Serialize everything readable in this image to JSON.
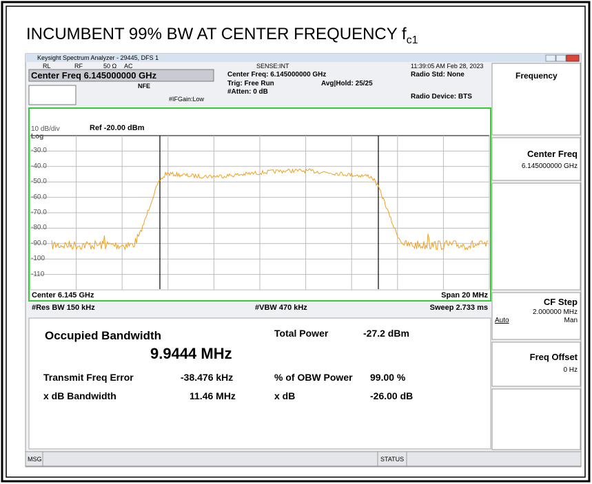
{
  "title": {
    "text": "INCUMBENT 99% BW AT CENTER FREQUENCY f",
    "subscript": "c1"
  },
  "window": {
    "title": "Keysight Spectrum Analyzer - 29445, DFS 1"
  },
  "status_row": {
    "rl": "RL",
    "rf": "RF",
    "impedance": "50 Ω",
    "coupling": "AC",
    "sense": "SENSE:INT",
    "datetime": "11:39:05 AM Feb 28, 2023"
  },
  "header": {
    "center_freq_box": "Center Freq 6.145000000 GHz",
    "nfe": "NFE",
    "ifgain": "#IFGain:Low",
    "center_freq": "Center Freq: 6.145000000 GHz",
    "trig": "Trig: Free Run",
    "avg_hold": "Avg|Hold: 25/25",
    "atten": "#Atten: 0 dB",
    "radio_std": "Radio Std: None",
    "radio_device": "Radio Device: BTS"
  },
  "graph": {
    "scale": "10 dB/div",
    "ref": "Ref -20.00 dBm",
    "log": "Log",
    "y_labels": [
      "-30.0",
      "-40.0",
      "-50.0",
      "-60.0",
      "-70.0",
      "-80.0",
      "-90.0",
      "-100",
      "-110"
    ],
    "center": "Center 6.145 GHz",
    "span": "Span 20 MHz",
    "res_bw": "#Res BW 150 kHz",
    "vbw": "#VBW 470 kHz",
    "sweep": "Sweep 2.733 ms"
  },
  "results": {
    "occupied_bw_label": "Occupied Bandwidth",
    "occupied_bw": "9.9444 MHz",
    "total_power_label": "Total Power",
    "total_power": "-27.2 dBm",
    "freq_error_label": "Transmit Freq Error",
    "freq_error": "-38.476 kHz",
    "obw_power_label": "% of OBW Power",
    "obw_power": "99.00 %",
    "xdb_bw_label": "x dB Bandwidth",
    "xdb_bw": "11.46 MHz",
    "xdb_label": "x dB",
    "xdb": "-26.00 dB"
  },
  "softkeys": {
    "menu": "Frequency",
    "center_freq": "Center Freq",
    "center_freq_value": "6.145000000 GHz",
    "cf_step": "CF Step",
    "cf_step_value": "2.000000 MHz",
    "auto": "Auto",
    "man": "Man",
    "freq_offset": "Freq Offset",
    "freq_offset_value": "0 Hz"
  },
  "statusbar": {
    "msg": "MSG",
    "status": "STATUS"
  }
}
